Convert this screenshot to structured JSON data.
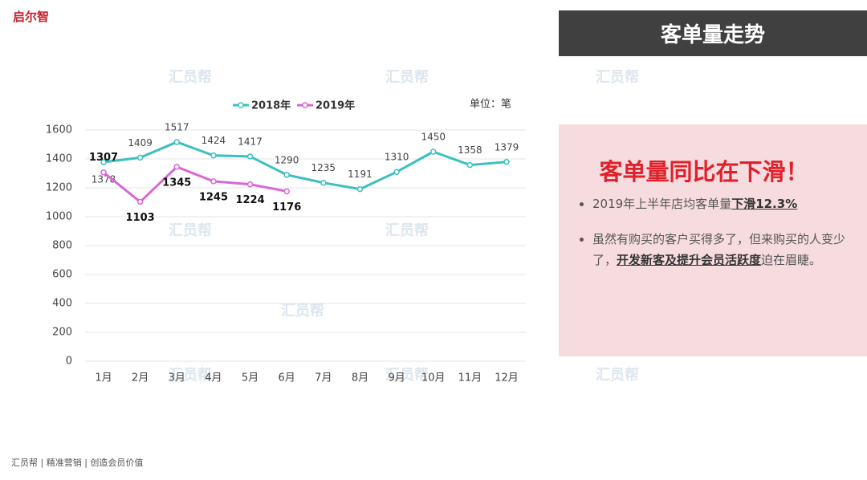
{
  "logo": "启尔智",
  "header": {
    "title": "客单量走势"
  },
  "watermark": "汇员帮",
  "panel": {
    "headline": "客单量同比在下滑！",
    "bullets": [
      [
        {
          "text": "2019年上半年店均客单量"
        },
        {
          "text": "下滑12.3%",
          "bold": true
        }
      ],
      [
        {
          "text": "虽然有购买的客户买得多了，但来购买的人变少了，"
        },
        {
          "text": "开发新客及提升会员活跃度",
          "bold": true
        },
        {
          "text": "迫在眉睫。"
        }
      ]
    ]
  },
  "footer": "汇员帮 | 精准营销 | 创造会员价值",
  "chart_data": {
    "type": "line",
    "unit": "单位：笔",
    "categories": [
      "1月",
      "2月",
      "3月",
      "4月",
      "5月",
      "6月",
      "7月",
      "8月",
      "9月",
      "10月",
      "11月",
      "12月"
    ],
    "series": [
      {
        "name": "2018年",
        "color": "#3cbfbf",
        "values": [
          1378,
          1409,
          1517,
          1424,
          1417,
          1290,
          1235,
          1191,
          1310,
          1450,
          1358,
          1379
        ]
      },
      {
        "name": "2019年",
        "color": "#d966d6",
        "values": [
          1307,
          1103,
          1345,
          1245,
          1224,
          1176,
          null,
          null,
          null,
          null,
          null,
          null
        ]
      }
    ],
    "ylim": [
      0,
      1600
    ],
    "yticks": [
      0,
      200,
      400,
      600,
      800,
      1000,
      1200,
      1400,
      1600
    ],
    "grid": true,
    "legend": "top"
  }
}
